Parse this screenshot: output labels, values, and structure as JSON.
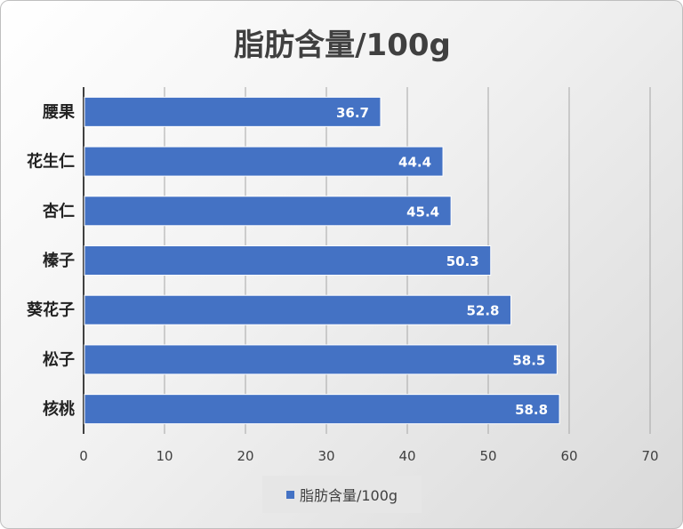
{
  "chart_data": {
    "type": "bar",
    "orientation": "horizontal",
    "title": "脂肪含量/100g",
    "categories": [
      "腰果",
      "花生仁",
      "杏仁",
      "榛子",
      "葵花子",
      "松子",
      "核桃"
    ],
    "series": [
      {
        "name": "脂肪含量/100g",
        "values": [
          36.7,
          44.4,
          45.4,
          50.3,
          52.8,
          58.5,
          58.8
        ],
        "color": "#4472c4"
      }
    ],
    "xlim": [
      0,
      70
    ],
    "xticks": [
      "0",
      "10",
      "20",
      "30",
      "40",
      "50",
      "60",
      "70"
    ],
    "grid": true,
    "legend_position": "bottom",
    "data_labels": [
      "36.7",
      "44.4",
      "45.4",
      "50.3",
      "52.8",
      "58.5",
      "58.8"
    ]
  }
}
